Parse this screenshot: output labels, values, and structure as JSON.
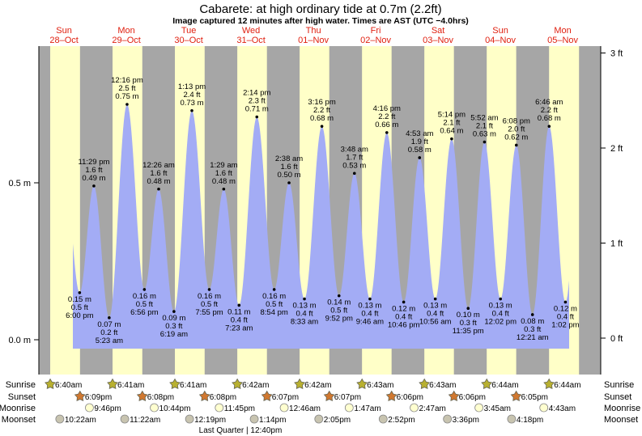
{
  "chart_data": {
    "type": "area",
    "title": "Cabarete: at high  ordinary tide at 0.7m (2.2ft)",
    "subtitle": "Image captured 12 minutes after high water. Times are AST (UTC −4.0hrs)",
    "days": [
      {
        "dow": "Sun",
        "date": "28–Oct"
      },
      {
        "dow": "Mon",
        "date": "29–Oct"
      },
      {
        "dow": "Tue",
        "date": "30–Oct"
      },
      {
        "dow": "Wed",
        "date": "31–Oct"
      },
      {
        "dow": "Thu",
        "date": "01–Nov"
      },
      {
        "dow": "Fri",
        "date": "02–Nov"
      },
      {
        "dow": "Sat",
        "date": "03–Nov"
      },
      {
        "dow": "Sun",
        "date": "04–Nov"
      },
      {
        "dow": "Mon",
        "date": "05–Nov"
      }
    ],
    "y_left": {
      "unit": "m",
      "ticks": [
        {
          "v": 0,
          "label": "0.0 m"
        },
        {
          "v": 0.5,
          "label": "0.5 m"
        }
      ]
    },
    "y_right": {
      "unit": "ft",
      "ticks": [
        {
          "v": 0,
          "label": "0 ft"
        },
        {
          "v": 1,
          "label": "1 ft"
        },
        {
          "v": 2,
          "label": "2 ft"
        },
        {
          "v": 3,
          "label": "3 ft"
        }
      ]
    },
    "extremes": [
      {
        "day": 0,
        "h": 18.0,
        "type": "low",
        "time": "6:00 pm",
        "ft": "0.5 ft",
        "m": 0.15,
        "ml": "0.15 m"
      },
      {
        "day": 0,
        "h": 23.483,
        "type": "high",
        "time": "11:29 pm",
        "ft": "1.6 ft",
        "m": 0.49,
        "ml": "0.49 m"
      },
      {
        "day": 1,
        "h": 5.383,
        "type": "low",
        "time": "5:23 am",
        "ft": "0.2 ft",
        "m": 0.07,
        "ml": "0.07 m"
      },
      {
        "day": 1,
        "h": 12.267,
        "type": "high",
        "time": "12:16 pm",
        "ft": "2.5 ft",
        "m": 0.75,
        "ml": "0.75 m"
      },
      {
        "day": 1,
        "h": 18.933,
        "type": "low",
        "time": "6:56 pm",
        "ft": "0.5 ft",
        "m": 0.16,
        "ml": "0.16 m"
      },
      {
        "day": 2,
        "h": 0.433,
        "type": "high",
        "time": "12:26 am",
        "ft": "1.6 ft",
        "m": 0.48,
        "ml": "0.48 m"
      },
      {
        "day": 2,
        "h": 6.317,
        "type": "low",
        "time": "6:19 am",
        "ft": "0.3 ft",
        "m": 0.09,
        "ml": "0.09 m"
      },
      {
        "day": 2,
        "h": 13.217,
        "type": "high",
        "time": "1:13 pm",
        "ft": "2.4 ft",
        "m": 0.73,
        "ml": "0.73 m"
      },
      {
        "day": 2,
        "h": 19.917,
        "type": "low",
        "time": "7:55 pm",
        "ft": "0.5 ft",
        "m": 0.16,
        "ml": "0.16 m"
      },
      {
        "day": 3,
        "h": 1.483,
        "type": "high",
        "time": "1:29 am",
        "ft": "1.6 ft",
        "m": 0.48,
        "ml": "0.48 m"
      },
      {
        "day": 3,
        "h": 7.383,
        "type": "low",
        "time": "7:23 am",
        "ft": "0.4 ft",
        "m": 0.11,
        "ml": "0.11 m"
      },
      {
        "day": 3,
        "h": 14.233,
        "type": "high",
        "time": "2:14 pm",
        "ft": "2.3 ft",
        "m": 0.71,
        "ml": "0.71 m"
      },
      {
        "day": 3,
        "h": 20.9,
        "type": "low",
        "time": "8:54 pm",
        "ft": "0.5 ft",
        "m": 0.16,
        "ml": "0.16 m"
      },
      {
        "day": 4,
        "h": 2.633,
        "type": "high",
        "time": "2:38 am",
        "ft": "1.6 ft",
        "m": 0.5,
        "ml": "0.50 m"
      },
      {
        "day": 4,
        "h": 8.55,
        "type": "low",
        "time": "8:33 am",
        "ft": "0.4 ft",
        "m": 0.13,
        "ml": "0.13 m"
      },
      {
        "day": 4,
        "h": 15.267,
        "type": "high",
        "time": "3:16 pm",
        "ft": "2.2 ft",
        "m": 0.68,
        "ml": "0.68 m"
      },
      {
        "day": 4,
        "h": 21.867,
        "type": "low",
        "time": "9:52 pm",
        "ft": "0.5 ft",
        "m": 0.14,
        "ml": "0.14 m"
      },
      {
        "day": 5,
        "h": 3.8,
        "type": "high",
        "time": "3:48 am",
        "ft": "1.7 ft",
        "m": 0.53,
        "ml": "0.53 m"
      },
      {
        "day": 5,
        "h": 9.767,
        "type": "low",
        "time": "9:46 am",
        "ft": "0.4 ft",
        "m": 0.13,
        "ml": "0.13 m"
      },
      {
        "day": 5,
        "h": 16.267,
        "type": "high",
        "time": "4:16 pm",
        "ft": "2.2 ft",
        "m": 0.66,
        "ml": "0.66 m"
      },
      {
        "day": 5,
        "h": 22.767,
        "type": "low",
        "time": "10:46 pm",
        "ft": "0.4 ft",
        "m": 0.12,
        "ml": "0.12 m"
      },
      {
        "day": 6,
        "h": 4.883,
        "type": "high",
        "time": "4:53 am",
        "ft": "1.9 ft",
        "m": 0.58,
        "ml": "0.58 m"
      },
      {
        "day": 6,
        "h": 10.933,
        "type": "low",
        "time": "10:56 am",
        "ft": "0.4 ft",
        "m": 0.13,
        "ml": "0.13 m"
      },
      {
        "day": 6,
        "h": 17.233,
        "type": "high",
        "time": "5:14 pm",
        "ft": "2.1 ft",
        "m": 0.64,
        "ml": "0.64 m"
      },
      {
        "day": 6,
        "h": 23.583,
        "type": "low",
        "time": "11:35 pm",
        "ft": "0.3 ft",
        "m": 0.1,
        "ml": "0.10 m"
      },
      {
        "day": 7,
        "h": 5.867,
        "type": "high",
        "time": "5:52 am",
        "ft": "2.1 ft",
        "m": 0.63,
        "ml": "0.63 m"
      },
      {
        "day": 7,
        "h": 12.033,
        "type": "low",
        "time": "12:02 pm",
        "ft": "0.4 ft",
        "m": 0.13,
        "ml": "0.13 m"
      },
      {
        "day": 7,
        "h": 18.133,
        "type": "high",
        "time": "6:08 pm",
        "ft": "2.0 ft",
        "m": 0.62,
        "ml": "0.62 m"
      },
      {
        "day": 8,
        "h": 0.35,
        "type": "low",
        "time": "12:21 am",
        "ft": "0.3 ft",
        "m": 0.08,
        "ml": "0.08 m"
      },
      {
        "day": 8,
        "h": 6.767,
        "type": "high",
        "time": "6:46 am",
        "ft": "2.2 ft",
        "m": 0.68,
        "ml": "0.68 m"
      },
      {
        "day": 8,
        "h": 13.033,
        "type": "low",
        "time": "1:02 pm",
        "ft": "0.4 ft",
        "m": 0.12,
        "ml": "0.12 m"
      }
    ],
    "sunrise": [
      {
        "day": 0,
        "h": 6.667,
        "t": "6:40am"
      },
      {
        "day": 1,
        "h": 6.683,
        "t": "6:41am"
      },
      {
        "day": 2,
        "h": 6.683,
        "t": "6:41am"
      },
      {
        "day": 3,
        "h": 6.7,
        "t": "6:42am"
      },
      {
        "day": 4,
        "h": 6.7,
        "t": "6:42am"
      },
      {
        "day": 5,
        "h": 6.717,
        "t": "6:43am"
      },
      {
        "day": 6,
        "h": 6.717,
        "t": "6:43am"
      },
      {
        "day": 7,
        "h": 6.733,
        "t": "6:44am"
      },
      {
        "day": 8,
        "h": 6.733,
        "t": "6:44am"
      }
    ],
    "sunset": [
      {
        "day": 0,
        "h": 18.15,
        "t": "6:09pm"
      },
      {
        "day": 1,
        "h": 18.133,
        "t": "6:08pm"
      },
      {
        "day": 2,
        "h": 18.133,
        "t": "6:08pm"
      },
      {
        "day": 3,
        "h": 18.117,
        "t": "6:07pm"
      },
      {
        "day": 4,
        "h": 18.117,
        "t": "6:07pm"
      },
      {
        "day": 5,
        "h": 18.1,
        "t": "6:06pm"
      },
      {
        "day": 6,
        "h": 18.1,
        "t": "6:06pm"
      },
      {
        "day": 7,
        "h": 18.083,
        "t": "6:05pm"
      }
    ],
    "moonrise": [
      {
        "day": 0,
        "h": 21.767,
        "t": "9:46pm"
      },
      {
        "day": 1,
        "h": 22.733,
        "t": "10:44pm"
      },
      {
        "day": 2,
        "h": 23.75,
        "t": "11:45pm"
      },
      {
        "day": 4,
        "h": 0.767,
        "t": "12:46am"
      },
      {
        "day": 5,
        "h": 1.783,
        "t": "1:47am"
      },
      {
        "day": 6,
        "h": 2.783,
        "t": "2:47am"
      },
      {
        "day": 7,
        "h": 3.75,
        "t": "3:45am"
      },
      {
        "day": 8,
        "h": 4.717,
        "t": "4:43am"
      }
    ],
    "moonset": [
      {
        "day": 0,
        "h": 10.367,
        "t": "10:22am"
      },
      {
        "day": 1,
        "h": 11.367,
        "t": "11:22am"
      },
      {
        "day": 2,
        "h": 12.317,
        "t": "12:19pm"
      },
      {
        "day": 3,
        "h": 13.233,
        "t": "1:14pm"
      },
      {
        "day": 4,
        "h": 14.083,
        "t": "2:05pm"
      },
      {
        "day": 5,
        "h": 14.867,
        "t": "2:52pm"
      },
      {
        "day": 6,
        "h": 15.6,
        "t": "3:36pm"
      },
      {
        "day": 7,
        "h": 16.3,
        "t": "4:18pm"
      }
    ],
    "row_labels": {
      "sunrise": "Sunrise",
      "sunset": "Sunset",
      "moonrise": "Moonrise",
      "moonset": "Moonset"
    },
    "moon_phase": "Last Quarter | 12:40pm"
  },
  "colors": {
    "night": "#a6a6a6",
    "day": "#ffffc8",
    "water": "#a3acf5",
    "day_label": "#e02010",
    "sunrise": "#b8b030",
    "sunset": "#d07830",
    "moonrise": "#ffffd0",
    "moonset": "#c8c4b0"
  }
}
